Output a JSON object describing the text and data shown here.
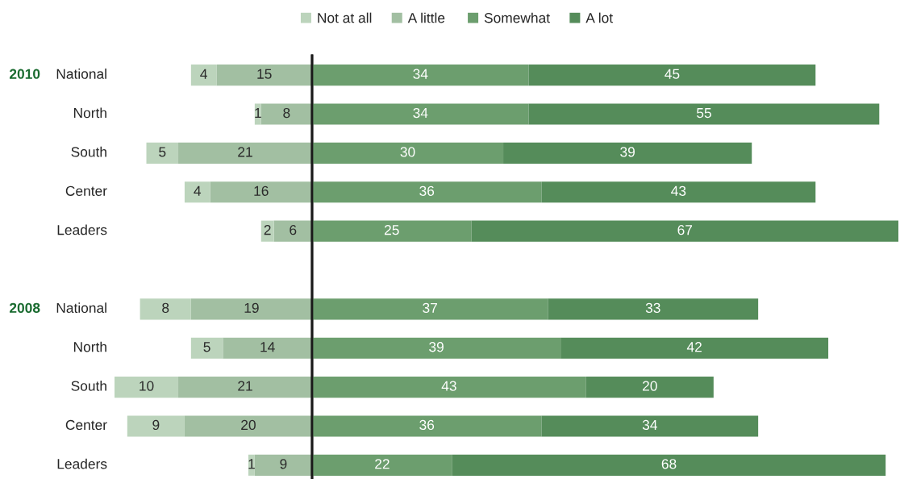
{
  "chart_data": [
    {
      "type": "bar",
      "orientation": "horizontal",
      "stacked": true,
      "legend": "top",
      "data_labels": true,
      "tick_labels": "y",
      "xlim": [
        31,
        0
      ],
      "categories": [
        "National",
        "North",
        "South",
        "Center",
        "Leaders",
        null,
        "National",
        "North",
        "South",
        "Center",
        "Leaders"
      ],
      "series": [
        {
          "name": "A little",
          "color": "#a2bfa2",
          "values": [
            15,
            8,
            21,
            16,
            6,
            null,
            19,
            14,
            21,
            20,
            9
          ]
        },
        {
          "name": "Not at all",
          "color": "#bcd4bc",
          "values": [
            4,
            1,
            5,
            4,
            2,
            null,
            8,
            5,
            10,
            9,
            1
          ]
        }
      ],
      "annotations": [
        "2010",
        "2008"
      ]
    },
    {
      "type": "bar",
      "orientation": "horizontal",
      "stacked": true,
      "legend": "top",
      "data_labels": true,
      "tick_labels": false,
      "xlim": [
        0,
        92
      ],
      "categories": [
        null,
        null,
        null,
        null,
        null,
        null,
        null,
        null,
        null,
        null,
        null
      ],
      "series": [
        {
          "name": "Somewhat",
          "color": "#6c9e6e",
          "values": [
            34,
            34,
            30,
            36,
            25,
            null,
            37,
            39,
            43,
            36,
            22
          ]
        },
        {
          "name": "A lot",
          "color": "#558c5a",
          "values": [
            45,
            55,
            39,
            43,
            67,
            null,
            33,
            42,
            20,
            34,
            68
          ]
        }
      ]
    }
  ]
}
